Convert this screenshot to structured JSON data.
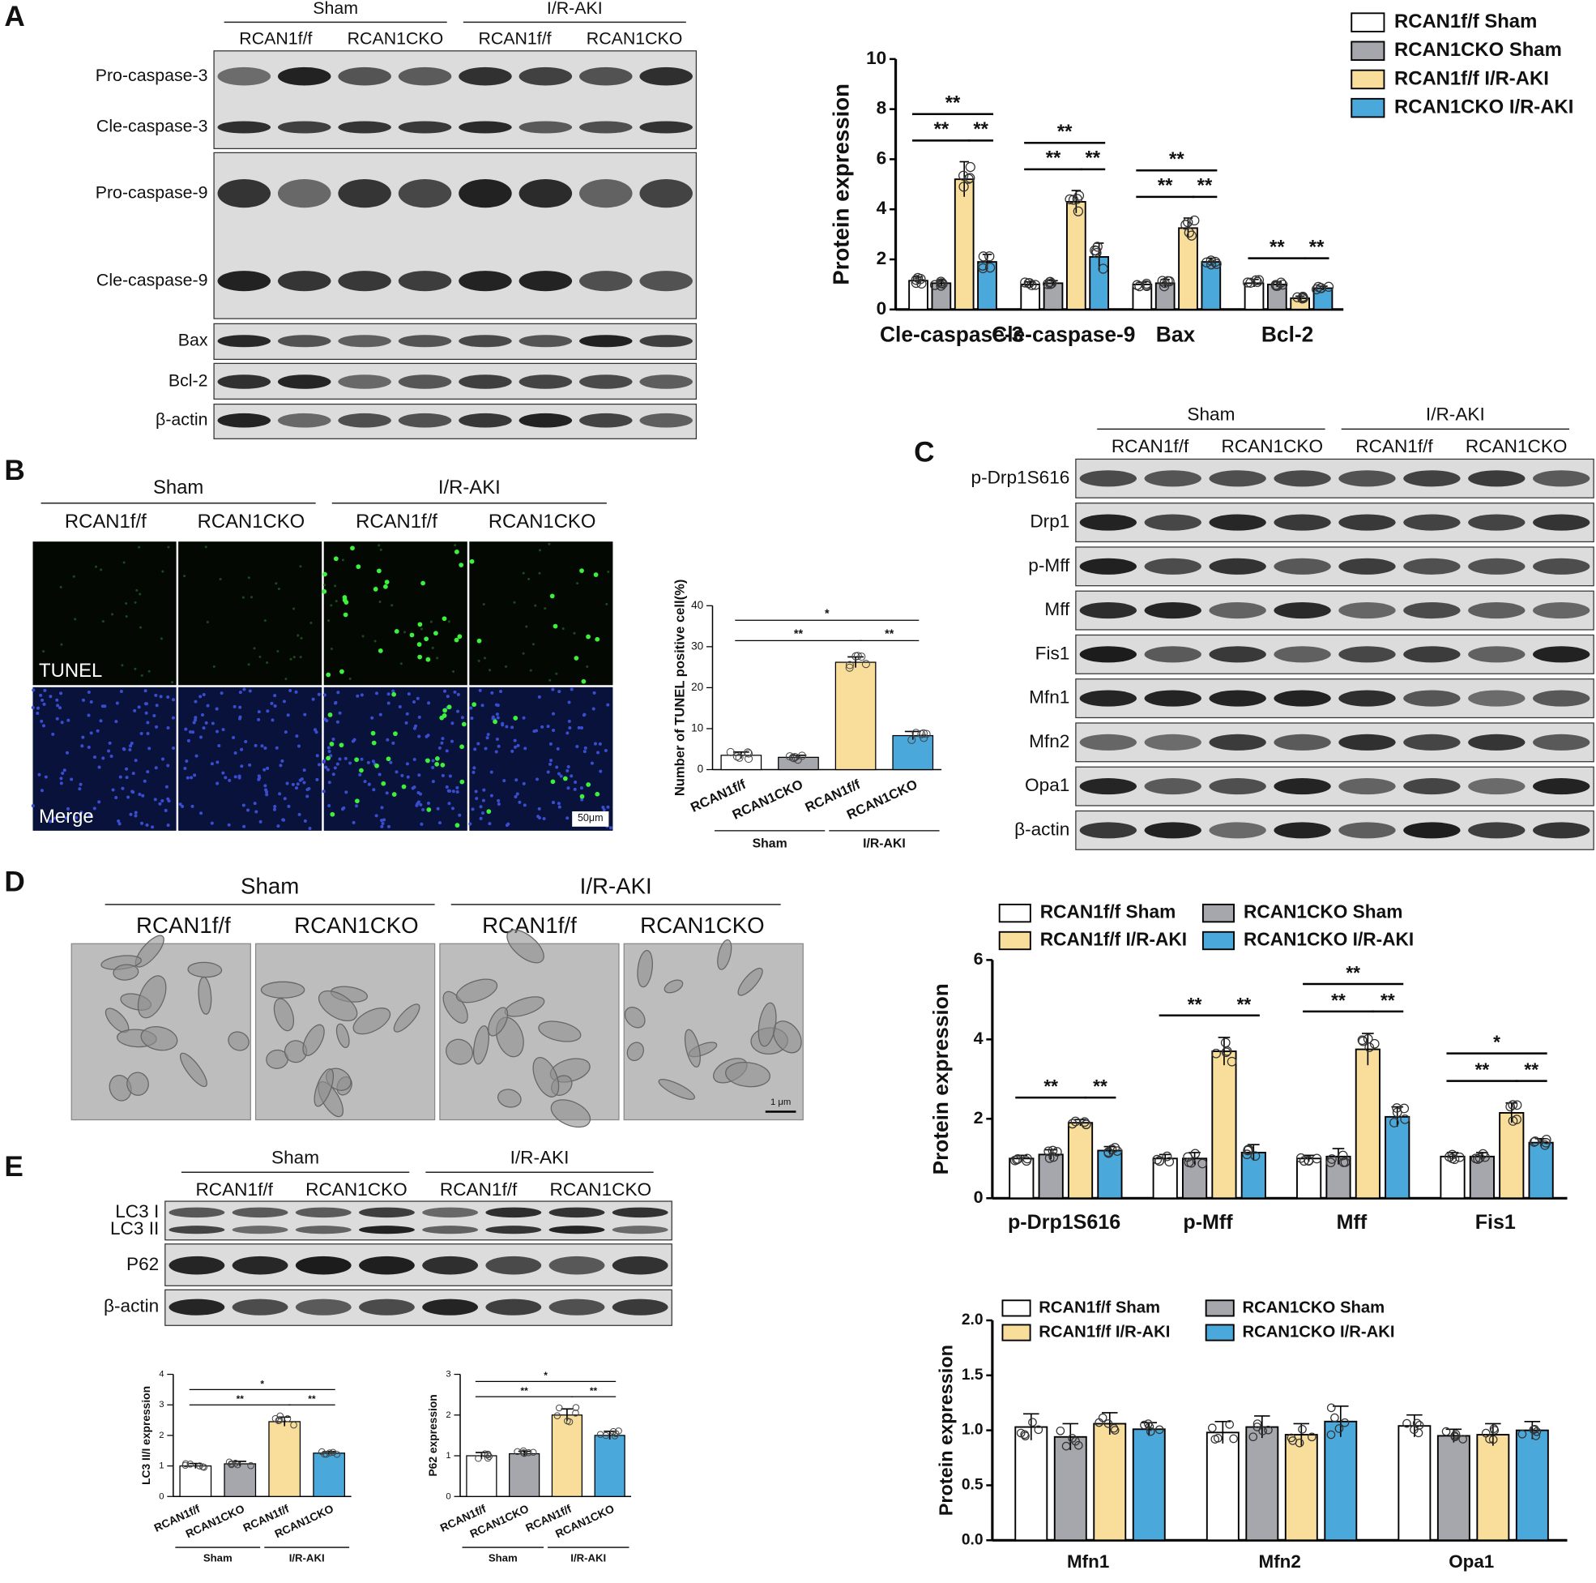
{
  "figure": {
    "panel_labels": [
      "A",
      "B",
      "C",
      "D",
      "E"
    ],
    "blot_A": {
      "groups": [
        "Sham",
        "I/R-AKI"
      ],
      "genotypes": [
        "RCAN1f/f",
        "RCAN1CKO",
        "RCAN1f/f",
        "RCAN1CKO"
      ],
      "rows": [
        "Pro-caspase-3",
        "Cle-caspase-3",
        "Pro-caspase-9",
        "Cle-caspase-9",
        "Bax",
        "Bcl-2",
        "β-actin"
      ]
    },
    "blot_C": {
      "groups": [
        "Sham",
        "I/R-AKI"
      ],
      "genotypes": [
        "RCAN1f/f",
        "RCAN1CKO",
        "RCAN1f/f",
        "RCAN1CKO"
      ],
      "rows": [
        "p-Drp1S616",
        "Drp1",
        "p-Mff",
        "Mff",
        "Fis1",
        "Mfn1",
        "Mfn2",
        "Opa1",
        "β-actin"
      ]
    },
    "blot_E": {
      "groups": [
        "Sham",
        "I/R-AKI"
      ],
      "genotypes": [
        "RCAN1f/f",
        "RCAN1CKO",
        "RCAN1f/f",
        "RCAN1CKO"
      ],
      "rows": [
        "LC3 I",
        "LC3 II",
        "P62",
        "β-actin"
      ]
    },
    "tunel": {
      "groups": [
        "Sham",
        "I/R-AKI"
      ],
      "genotypes": [
        "RCAN1f/f",
        "RCAN1CKO",
        "RCAN1f/f",
        "RCAN1CKO"
      ],
      "stain_labels": [
        "TUNEL",
        "Merge"
      ],
      "scale_bar": "50μm"
    },
    "em": {
      "groups": [
        "Sham",
        "I/R-AKI"
      ],
      "genotypes": [
        "RCAN1f/f",
        "RCAN1CKO",
        "RCAN1f/f",
        "RCAN1CKO"
      ],
      "scale_bar": "1 μm"
    }
  },
  "chart_data": [
    {
      "type": "bar",
      "y_label": "Protein expression",
      "categories": [
        "Cle-caspase-3",
        "Cle-caspase-9",
        "Bax",
        "Bcl-2"
      ],
      "series": [
        {
          "name": "RCAN1f/f Sham",
          "color": "#ffffff",
          "values": [
            1.15,
            1.0,
            1.0,
            1.05
          ],
          "errors": [
            0.15,
            0.1,
            0.08,
            0.15
          ]
        },
        {
          "name": "RCAN1CKO Sham",
          "color": "#a6a6ad",
          "values": [
            1.05,
            1.05,
            1.05,
            1.0
          ],
          "errors": [
            0.12,
            0.1,
            0.15,
            0.1
          ]
        },
        {
          "name": "RCAN1f/f I/R-AKI",
          "color": "#f8de9a",
          "values": [
            5.2,
            4.3,
            3.25,
            0.45
          ],
          "errors": [
            0.7,
            0.45,
            0.4,
            0.08
          ]
        },
        {
          "name": "RCAN1CKO I/R-AKI",
          "color": "#4ba8da",
          "values": [
            1.9,
            2.1,
            1.9,
            0.85
          ],
          "errors": [
            0.3,
            0.55,
            0.15,
            0.08
          ]
        }
      ],
      "ylim": [
        0,
        10
      ],
      "yticks": [
        0,
        2,
        4,
        6,
        8,
        10
      ],
      "legend": "upper right",
      "annotations": [
        {
          "text": "**",
          "category": 0,
          "from": 0,
          "to": 2
        },
        {
          "text": "**",
          "category": 0,
          "from": 2,
          "to": 3
        },
        {
          "text": "**",
          "category": 0,
          "from": 0,
          "to": 3
        },
        {
          "text": "**",
          "category": 1,
          "from": 0,
          "to": 2
        },
        {
          "text": "**",
          "category": 1,
          "from": 2,
          "to": 3
        },
        {
          "text": "**",
          "category": 1,
          "from": 0,
          "to": 3
        },
        {
          "text": "**",
          "category": 2,
          "from": 0,
          "to": 2
        },
        {
          "text": "**",
          "category": 2,
          "from": 2,
          "to": 3
        },
        {
          "text": "**",
          "category": 2,
          "from": 0,
          "to": 3
        },
        {
          "text": "**",
          "category": 3,
          "from": 2,
          "to": 3
        },
        {
          "text": "**",
          "category": 3,
          "from": 0,
          "to": 2
        }
      ]
    },
    {
      "type": "bar",
      "y_label": "Number of TUNEL positive cell(%)",
      "categories": [
        "RCAN1f/f",
        "RCAN1CKO",
        "RCAN1f/f",
        "RCAN1CKO"
      ],
      "x_groups": [
        "Sham",
        "I/R-AKI"
      ],
      "values": [
        3.5,
        3.0,
        26.2,
        8.3
      ],
      "errors": [
        0.8,
        0.5,
        1.3,
        1.0
      ],
      "colors": [
        "#ffffff",
        "#a6a6ad",
        "#f8de9a",
        "#4ba8da"
      ],
      "ylim": [
        0,
        40
      ],
      "yticks": [
        0,
        10,
        20,
        30,
        40
      ],
      "annotations": [
        {
          "text": "**",
          "from": 0,
          "to": 2
        },
        {
          "text": "**",
          "from": 2,
          "to": 3
        },
        {
          "text": "*",
          "from": 0,
          "to": 3
        }
      ]
    },
    {
      "type": "bar",
      "y_label": "Protein expression",
      "categories": [
        "p-Drp1S616",
        "p-Mff",
        "Mff",
        "Fis1"
      ],
      "series": [
        {
          "name": "RCAN1f/f Sham",
          "color": "#ffffff",
          "values": [
            1.0,
            1.0,
            1.0,
            1.05
          ],
          "errors": [
            0.08,
            0.1,
            0.08,
            0.1
          ]
        },
        {
          "name": "RCAN1CKO Sham",
          "color": "#a6a6ad",
          "values": [
            1.1,
            1.0,
            1.05,
            1.05
          ],
          "errors": [
            0.12,
            0.15,
            0.2,
            0.1
          ]
        },
        {
          "name": "RCAN1f/f I/R-AKI",
          "color": "#f8de9a",
          "values": [
            1.9,
            3.7,
            3.75,
            2.15
          ],
          "errors": [
            0.08,
            0.35,
            0.4,
            0.25
          ]
        },
        {
          "name": "RCAN1CKO I/R-AKI",
          "color": "#4ba8da",
          "values": [
            1.2,
            1.15,
            2.05,
            1.4
          ],
          "errors": [
            0.1,
            0.2,
            0.25,
            0.1
          ]
        }
      ],
      "ylim": [
        0,
        6
      ],
      "yticks": [
        0,
        2,
        4,
        6
      ],
      "legend": "upper left",
      "annotations": [
        {
          "text": "**",
          "category": 0,
          "from": 0,
          "to": 2
        },
        {
          "text": "**",
          "category": 0,
          "from": 2,
          "to": 3
        },
        {
          "text": "**",
          "category": 1,
          "from": 0,
          "to": 2
        },
        {
          "text": "**",
          "category": 1,
          "from": 2,
          "to": 3
        },
        {
          "text": "**",
          "category": 2,
          "from": 0,
          "to": 2
        },
        {
          "text": "**",
          "category": 2,
          "from": 2,
          "to": 3
        },
        {
          "text": "**",
          "category": 2,
          "from": 0,
          "to": 3
        },
        {
          "text": "**",
          "category": 3,
          "from": 0,
          "to": 2
        },
        {
          "text": "**",
          "category": 3,
          "from": 2,
          "to": 3
        },
        {
          "text": "*",
          "category": 3,
          "from": 0,
          "to": 3
        }
      ]
    },
    {
      "type": "bar",
      "y_label": "Protein expression",
      "categories": [
        "Mfn1",
        "Mfn2",
        "Opa1"
      ],
      "series": [
        {
          "name": "RCAN1f/f Sham",
          "color": "#ffffff",
          "values": [
            1.03,
            0.98,
            1.04
          ],
          "errors": [
            0.12,
            0.1,
            0.1
          ]
        },
        {
          "name": "RCAN1CKO Sham",
          "color": "#a6a6ad",
          "values": [
            0.94,
            1.03,
            0.95
          ],
          "errors": [
            0.12,
            0.1,
            0.06
          ]
        },
        {
          "name": "RCAN1f/f I/R-AKI",
          "color": "#f8de9a",
          "values": [
            1.06,
            0.96,
            0.96
          ],
          "errors": [
            0.1,
            0.1,
            0.1
          ]
        },
        {
          "name": "RCAN1CKO I/R-AKI",
          "color": "#4ba8da",
          "values": [
            1.01,
            1.08,
            1.0
          ],
          "errors": [
            0.06,
            0.14,
            0.08
          ]
        }
      ],
      "ylim": [
        0,
        2
      ],
      "yticks": [
        {
          "value": 0,
          "label": "0.0"
        },
        0.5,
        {
          "value": 1,
          "label": "1.0"
        },
        1.5,
        {
          "value": 2,
          "label": "2.0"
        }
      ],
      "legend": "upper left"
    },
    {
      "type": "bar",
      "y_label": "LC3 II/I expression",
      "categories": [
        "RCAN1f/f",
        "RCAN1CKO",
        "RCAN1f/f",
        "RCAN1CKO"
      ],
      "x_groups": [
        "Sham",
        "I/R-AKI"
      ],
      "values": [
        1.0,
        1.07,
        2.45,
        1.42
      ],
      "errors": [
        0.08,
        0.08,
        0.15,
        0.05
      ],
      "colors": [
        "#ffffff",
        "#a6a6ad",
        "#f8de9a",
        "#4ba8da"
      ],
      "ylim": [
        0,
        4
      ],
      "yticks": [
        0,
        1,
        2,
        3,
        4
      ],
      "annotations": [
        {
          "text": "**",
          "from": 0,
          "to": 2
        },
        {
          "text": "**",
          "from": 2,
          "to": 3
        },
        {
          "text": "*",
          "from": 0,
          "to": 3
        }
      ]
    },
    {
      "type": "bar",
      "y_label": "P62 expression",
      "categories": [
        "RCAN1f/f",
        "RCAN1CKO",
        "RCAN1f/f",
        "RCAN1CKO"
      ],
      "x_groups": [
        "Sham",
        "I/R-AKI"
      ],
      "values": [
        1.0,
        1.05,
        2.0,
        1.5
      ],
      "errors": [
        0.08,
        0.06,
        0.15,
        0.1
      ],
      "colors": [
        "#ffffff",
        "#a6a6ad",
        "#f8de9a",
        "#4ba8da"
      ],
      "ylim": [
        0,
        3
      ],
      "yticks": [
        0,
        1,
        2,
        3
      ],
      "annotations": [
        {
          "text": "**",
          "from": 0,
          "to": 2
        },
        {
          "text": "**",
          "from": 2,
          "to": 3
        },
        {
          "text": "*",
          "from": 0,
          "to": 3
        }
      ]
    }
  ]
}
